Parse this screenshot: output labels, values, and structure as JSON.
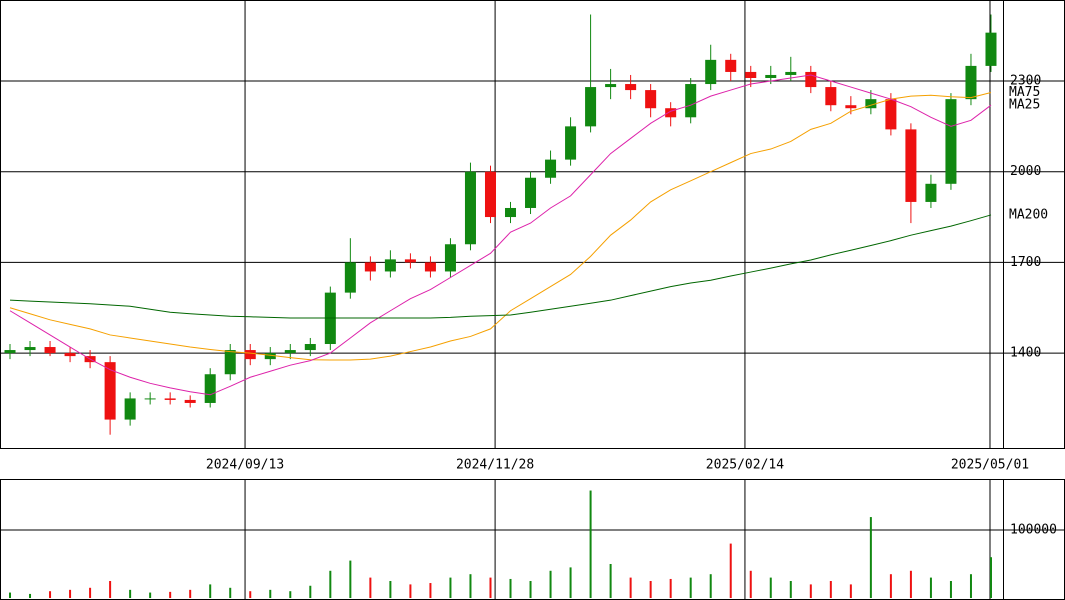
{
  "chart_data": {
    "type": "candlestick",
    "xlim": [
      -0.5,
      49.6
    ],
    "xticks": [
      {
        "value": 11.74,
        "label": "2024/09/13"
      },
      {
        "value": 24.23,
        "label": "2024/11/28"
      },
      {
        "value": 36.71,
        "label": "2025/02/14"
      },
      {
        "value": 48.95,
        "label": "2025/05/01"
      }
    ],
    "ylim": [
      1086,
      2568
    ],
    "yticks": [
      1400,
      1700,
      2000,
      2300
    ],
    "up_color": "#118811",
    "down_color": "#ee1111",
    "grid": true,
    "open": [
      1400,
      1410,
      1420,
      1400,
      1390,
      1370,
      1180,
      1250,
      1250,
      1245,
      1235,
      1330,
      1410,
      1380,
      1400,
      1410,
      1430,
      1600,
      1700,
      1670,
      1710,
      1700,
      1670,
      1760,
      2000,
      1850,
      1880,
      1980,
      2040,
      2150,
      2280,
      2290,
      2270,
      2210,
      2180,
      2290,
      2370,
      2330,
      2310,
      2320,
      2330,
      2280,
      2220,
      2210,
      2240,
      2140,
      1900,
      1960,
      2240,
      2350
    ],
    "high": [
      1430,
      1440,
      1440,
      1420,
      1410,
      1390,
      1270,
      1270,
      1270,
      1260,
      1350,
      1430,
      1430,
      1420,
      1430,
      1450,
      1620,
      1780,
      1720,
      1740,
      1730,
      1720,
      1780,
      2030,
      2020,
      1900,
      2000,
      2070,
      2180,
      2520,
      2340,
      2320,
      2290,
      2230,
      2310,
      2420,
      2390,
      2350,
      2350,
      2380,
      2350,
      2300,
      2250,
      2270,
      2260,
      2160,
      1990,
      2260,
      2390,
      2520
    ],
    "low": [
      1380,
      1390,
      1390,
      1370,
      1350,
      1130,
      1160,
      1230,
      1230,
      1220,
      1220,
      1310,
      1360,
      1360,
      1380,
      1390,
      1410,
      1580,
      1640,
      1650,
      1680,
      1650,
      1650,
      1740,
      1830,
      1830,
      1860,
      1960,
      2020,
      2130,
      2240,
      2240,
      2180,
      2150,
      2160,
      2270,
      2300,
      2280,
      2290,
      2300,
      2260,
      2200,
      2190,
      2190,
      2120,
      1830,
      1880,
      1940,
      2220,
      2330
    ],
    "close": [
      1410,
      1420,
      1400,
      1390,
      1370,
      1180,
      1250,
      1250,
      1245,
      1235,
      1330,
      1410,
      1380,
      1400,
      1410,
      1430,
      1600,
      1700,
      1670,
      1710,
      1700,
      1670,
      1760,
      2000,
      1850,
      1880,
      1980,
      2040,
      2150,
      2280,
      2290,
      2270,
      2210,
      2180,
      2290,
      2370,
      2330,
      2310,
      2320,
      2330,
      2280,
      2220,
      2210,
      2240,
      2140,
      1900,
      1960,
      2240,
      2350,
      2460
    ],
    "series": [
      {
        "name": "MA75",
        "color": "#f5a000",
        "values": [
          1550,
          1530,
          1510,
          1495,
          1480,
          1460,
          1450,
          1440,
          1430,
          1420,
          1412,
          1405,
          1400,
          1393,
          1385,
          1378,
          1377,
          1377,
          1380,
          1390,
          1405,
          1420,
          1440,
          1455,
          1480,
          1540,
          1580,
          1620,
          1660,
          1720,
          1790,
          1840,
          1900,
          1940,
          1970,
          2000,
          2030,
          2060,
          2075,
          2100,
          2140,
          2160,
          2200,
          2220,
          2240,
          2250,
          2253,
          2248,
          2245,
          2262
        ]
      },
      {
        "name": "MA25",
        "color": "#dd22aa",
        "values": [
          1540,
          1500,
          1460,
          1420,
          1380,
          1345,
          1320,
          1300,
          1285,
          1272,
          1262,
          1290,
          1320,
          1340,
          1360,
          1375,
          1400,
          1450,
          1500,
          1540,
          1580,
          1610,
          1650,
          1690,
          1730,
          1800,
          1830,
          1880,
          1920,
          1990,
          2060,
          2110,
          2160,
          2200,
          2220,
          2250,
          2270,
          2290,
          2300,
          2310,
          2320,
          2300,
          2280,
          2260,
          2240,
          2215,
          2180,
          2150,
          2170,
          2220
        ]
      },
      {
        "name": "MA200",
        "color": "#006600",
        "values": [
          1575,
          1572,
          1569,
          1566,
          1563,
          1559,
          1555,
          1545,
          1535,
          1530,
          1526,
          1522,
          1520,
          1518,
          1516,
          1516,
          1516,
          1516,
          1516,
          1516,
          1516,
          1516,
          1518,
          1522,
          1524,
          1526,
          1535,
          1545,
          1555,
          1565,
          1575,
          1590,
          1605,
          1620,
          1632,
          1641,
          1655,
          1668,
          1681,
          1695,
          1708,
          1725,
          1740,
          1756,
          1772,
          1790,
          1805,
          1820,
          1838,
          1857
        ]
      }
    ],
    "volume": {
      "ylim": [
        0,
        173500
      ],
      "yticks": [
        100000
      ],
      "values": [
        8000,
        6000,
        10000,
        12000,
        15000,
        25000,
        12000,
        8000,
        9000,
        12000,
        20000,
        15000,
        10000,
        12000,
        10000,
        18000,
        40000,
        55000,
        30000,
        25000,
        20000,
        22000,
        30000,
        35000,
        30000,
        28000,
        25000,
        40000,
        45000,
        158000,
        50000,
        30000,
        25000,
        28000,
        30000,
        35000,
        80000,
        40000,
        30000,
        25000,
        20000,
        25000,
        20000,
        119000,
        35000,
        40000,
        30000,
        25000,
        35000,
        60000
      ]
    }
  }
}
